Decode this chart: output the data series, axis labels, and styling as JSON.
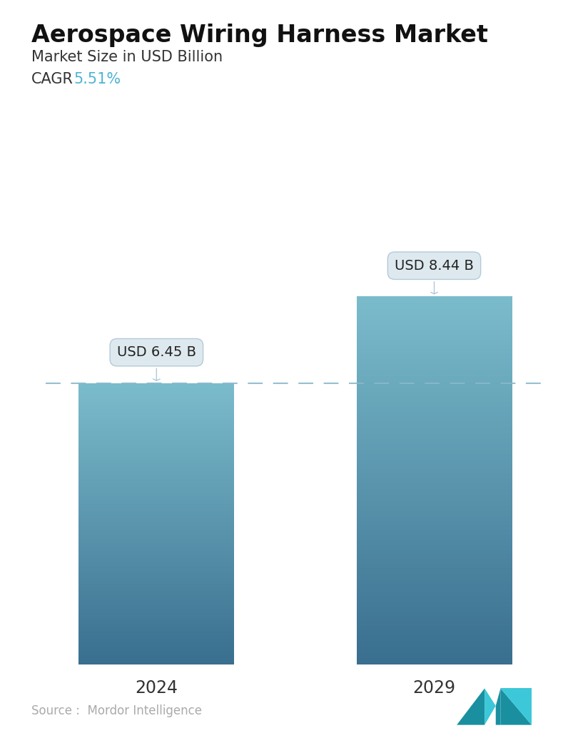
{
  "title": "Aerospace Wiring Harness Market",
  "subtitle": "Market Size in USD Billion",
  "cagr_label": "CAGR",
  "cagr_value": "5.51%",
  "cagr_color": "#4db3d4",
  "categories": [
    "2024",
    "2029"
  ],
  "values": [
    6.45,
    8.44
  ],
  "bar_labels": [
    "USD 6.45 B",
    "USD 8.44 B"
  ],
  "bar_top_color": "#7bbccc",
  "bar_bottom_color": "#3a6f8f",
  "dashed_line_color": "#88b8cc",
  "dashed_line_value": 6.45,
  "source_text": "Source :  Mordor Intelligence",
  "source_color": "#aaaaaa",
  "bg_color": "#ffffff",
  "tooltip_bg": "#dde8ef",
  "tooltip_border": "#b0c8d8",
  "ylim_max": 10.5,
  "title_fontsize": 24,
  "subtitle_fontsize": 15,
  "cagr_fontsize": 15,
  "tick_fontsize": 17,
  "label_fontsize": 14,
  "logo_left_color": "#1a8fa0",
  "logo_right_color": "#3cc8d8"
}
